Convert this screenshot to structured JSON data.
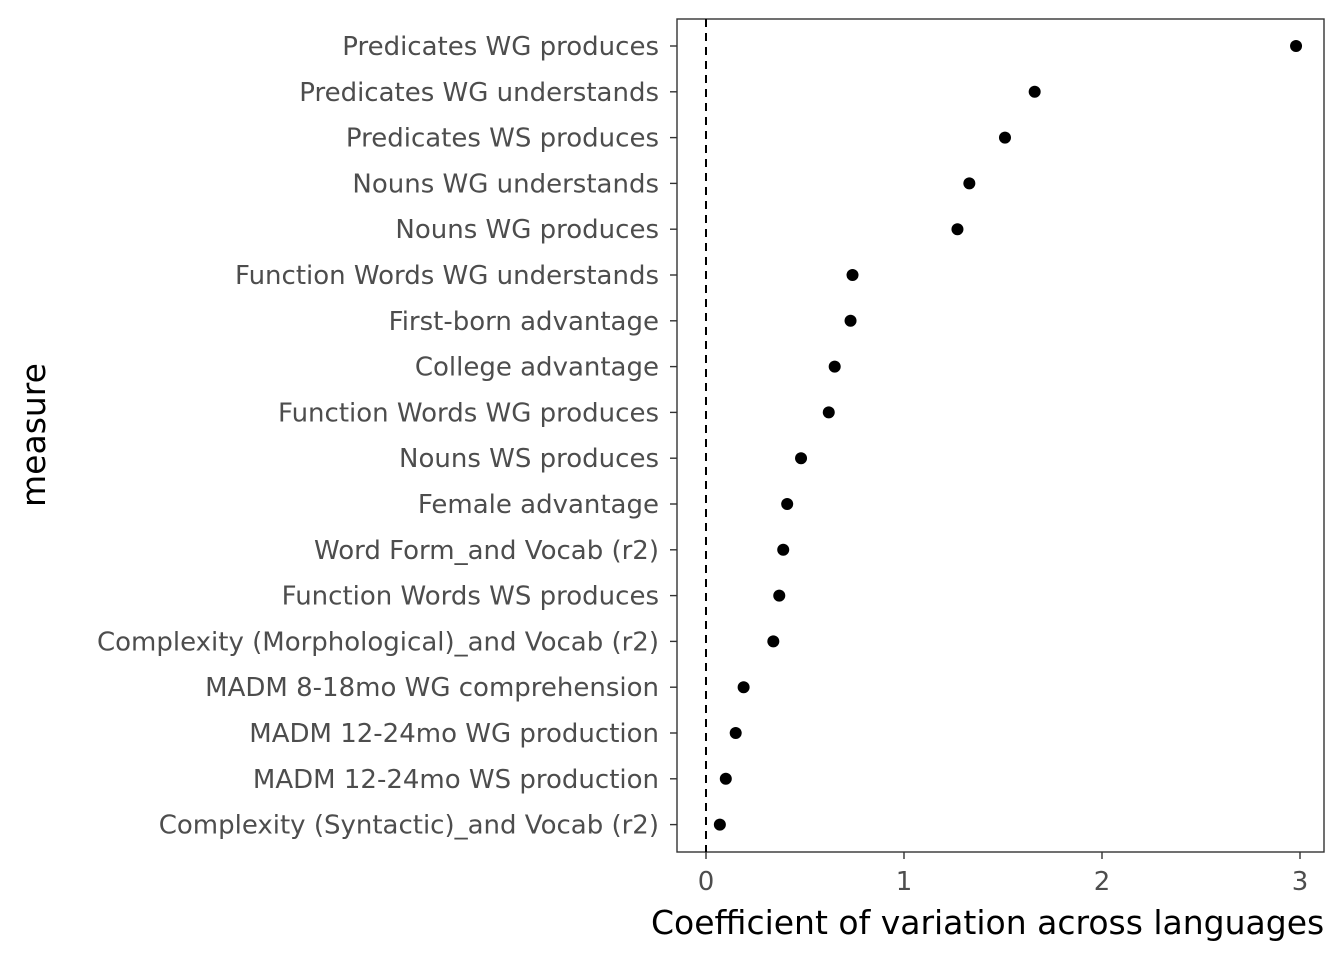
{
  "chart_data": {
    "type": "scatter",
    "title": "",
    "xlabel": "Coefficient of variation across languages",
    "ylabel": "measure",
    "xlim": [
      -0.15,
      3.12
    ],
    "x_ticks": [
      0,
      1,
      2,
      3
    ],
    "x_tick_labels": [
      "0",
      "1",
      "2",
      "3"
    ],
    "reference_line": {
      "x": 0,
      "style": "dashed"
    },
    "grid": false,
    "legend": "none",
    "colors": {
      "point": "#000000",
      "axis": "#333333",
      "tick_text": "#4d4d4d"
    },
    "points": [
      {
        "measure": "Predicates WG produces",
        "value": 2.98
      },
      {
        "measure": "Predicates WG understands",
        "value": 1.66
      },
      {
        "measure": "Predicates WS produces",
        "value": 1.51
      },
      {
        "measure": "Nouns WG understands",
        "value": 1.33
      },
      {
        "measure": "Nouns WG produces",
        "value": 1.27
      },
      {
        "measure": "Function Words WG understands",
        "value": 0.74
      },
      {
        "measure": "First-born advantage",
        "value": 0.73
      },
      {
        "measure": "College advantage",
        "value": 0.65
      },
      {
        "measure": "Function Words WG produces",
        "value": 0.62
      },
      {
        "measure": "Nouns WS produces",
        "value": 0.48
      },
      {
        "measure": "Female advantage",
        "value": 0.41
      },
      {
        "measure": "Word Form_and Vocab (r2)",
        "value": 0.39
      },
      {
        "measure": "Function Words WS produces",
        "value": 0.37
      },
      {
        "measure": "Complexity (Morphological)_and Vocab (r2)",
        "value": 0.34
      },
      {
        "measure": "MADM 8-18mo WG comprehension",
        "value": 0.19
      },
      {
        "measure": "MADM 12-24mo WG production",
        "value": 0.15
      },
      {
        "measure": "MADM 12-24mo WS production",
        "value": 0.1
      },
      {
        "measure": "Complexity (Syntactic)_and Vocab (r2)",
        "value": 0.07
      }
    ]
  }
}
